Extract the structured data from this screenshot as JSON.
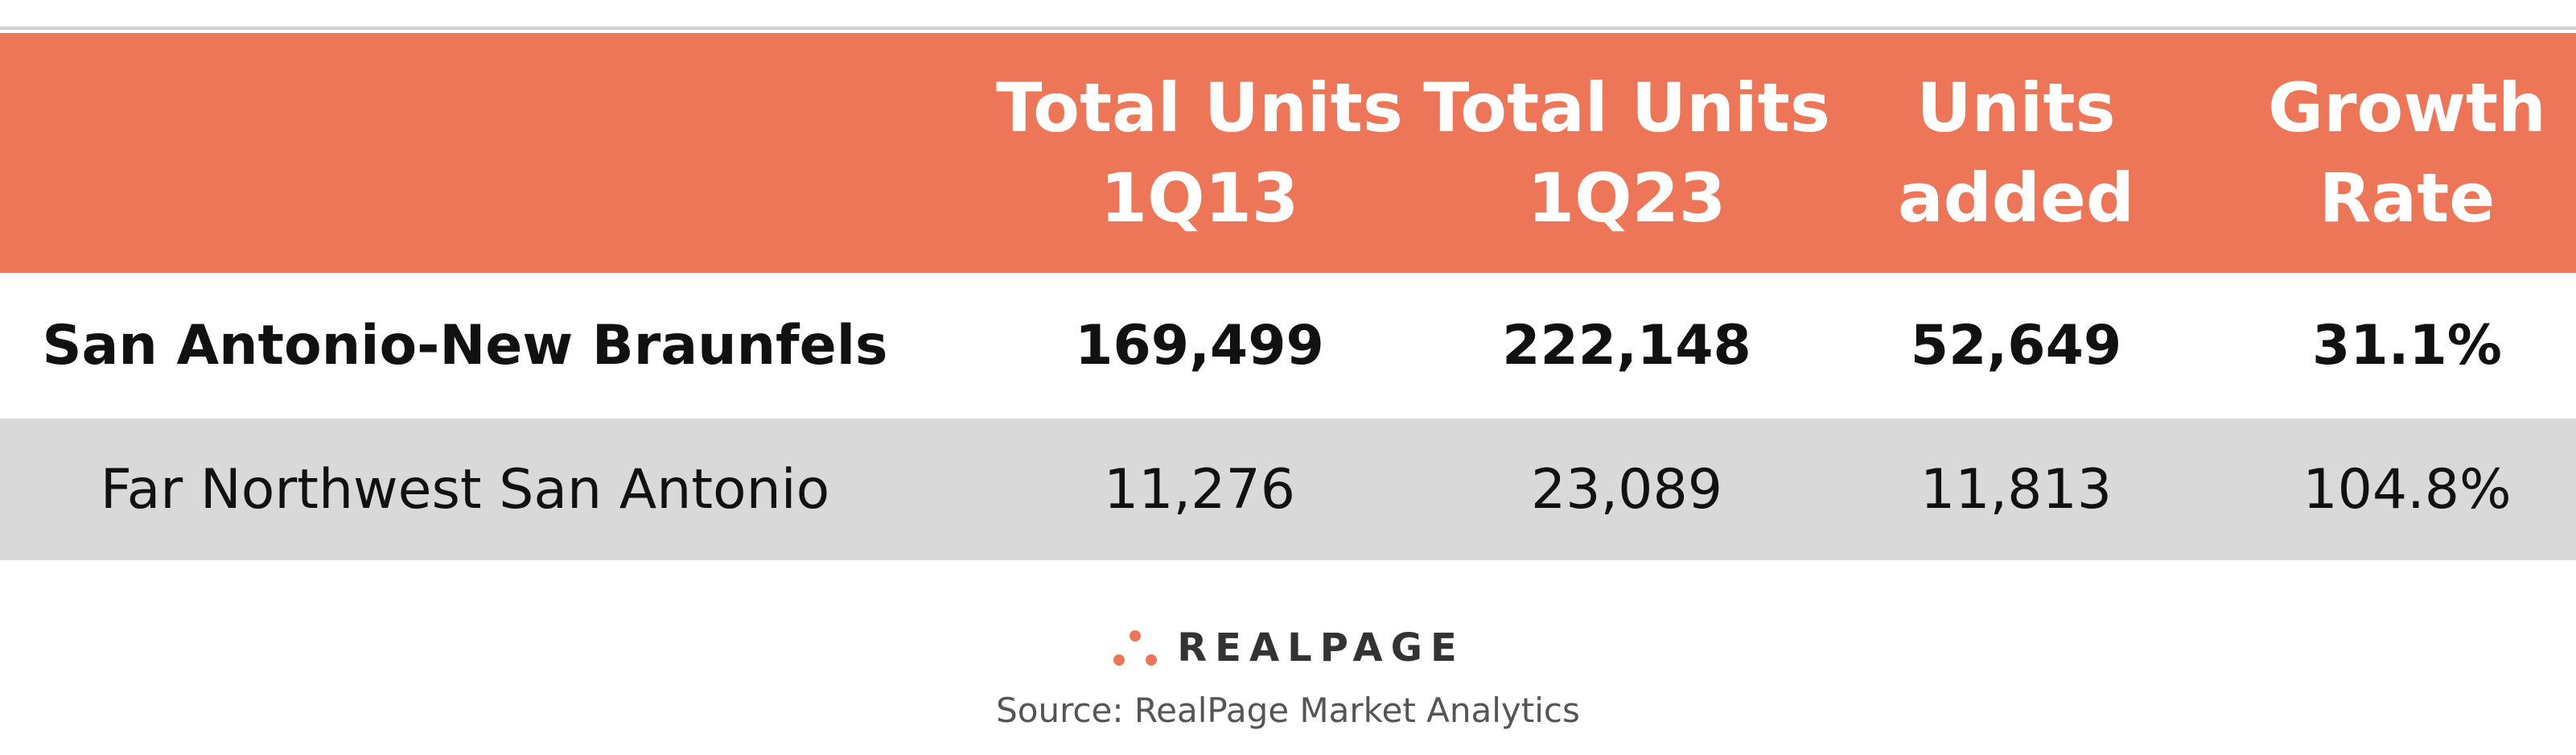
{
  "table": {
    "header": [
      [],
      [
        "Total Units",
        "1Q13"
      ],
      [
        "Total Units",
        "1Q23"
      ],
      [
        "Units",
        "added"
      ],
      [
        "Growth",
        "Rate"
      ]
    ],
    "rows": [
      [
        "San Antonio-New Braunfels",
        "169,499",
        "222,148",
        "52,649",
        "31.1%"
      ],
      [
        "Far Northwest San Antonio",
        "11,276",
        "23,089",
        "11,813",
        "104.8%"
      ]
    ]
  },
  "footer": {
    "logo": "REALPAGE",
    "source": "Source: RealPage Market Analytics"
  }
}
